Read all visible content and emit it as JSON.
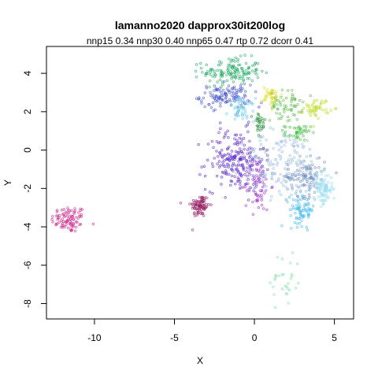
{
  "chart_data": {
    "type": "scatter",
    "title": "lamanno2020 dapprox30it200log",
    "subtitle": "nnp15 0.34 nnp30 0.40 nnp65 0.47 rtp 0.72 dcorr 0.41",
    "xlabel": "X",
    "ylabel": "Y",
    "xlim": [
      -13,
      6.2
    ],
    "ylim": [
      -8.8,
      5.4
    ],
    "x_ticks": [
      -10,
      -5,
      0,
      5
    ],
    "y_ticks": [
      -8,
      -6,
      -4,
      -2,
      0,
      2,
      4
    ],
    "grid": false,
    "clusters": [
      {
        "cx": -11.6,
        "cy": -3.6,
        "sx": 0.55,
        "sy": 0.35,
        "n": 90,
        "color": "#cc2288"
      },
      {
        "cx": -3.4,
        "cy": -2.9,
        "sx": 0.3,
        "sy": 0.3,
        "n": 90,
        "color": "#992266"
      },
      {
        "cx": -1.4,
        "cy": 4.1,
        "sx": 0.9,
        "sy": 0.35,
        "n": 140,
        "color": "#22aa66"
      },
      {
        "cx": -1.8,
        "cy": 2.8,
        "sx": 0.8,
        "sy": 0.3,
        "n": 120,
        "color": "#4455cc"
      },
      {
        "cx": -0.8,
        "cy": 2.1,
        "sx": 0.4,
        "sy": 0.3,
        "n": 50,
        "color": "#66ccee"
      },
      {
        "cx": 1.1,
        "cy": 2.8,
        "sx": 0.3,
        "sy": 0.25,
        "n": 40,
        "color": "#dddd22"
      },
      {
        "cx": 2.0,
        "cy": 2.3,
        "sx": 0.5,
        "sy": 0.4,
        "n": 60,
        "color": "#55bb44"
      },
      {
        "cx": 3.9,
        "cy": 2.2,
        "sx": 0.4,
        "sy": 0.25,
        "n": 50,
        "color": "#bbdd22"
      },
      {
        "cx": 2.7,
        "cy": 0.9,
        "sx": 0.4,
        "sy": 0.2,
        "n": 40,
        "color": "#33bb33"
      },
      {
        "cx": 0.3,
        "cy": 1.3,
        "sx": 0.2,
        "sy": 0.4,
        "n": 30,
        "color": "#228833"
      },
      {
        "cx": -1.2,
        "cy": -0.5,
        "sx": 0.9,
        "sy": 0.8,
        "n": 200,
        "color": "#5522cc"
      },
      {
        "cx": 0.2,
        "cy": -1.8,
        "sx": 0.4,
        "sy": 0.7,
        "n": 80,
        "color": "#9933cc"
      },
      {
        "cx": 1.8,
        "cy": -0.7,
        "sx": 1.3,
        "sy": 0.9,
        "n": 170,
        "color": "#99bbdd"
      },
      {
        "cx": 3.2,
        "cy": -1.4,
        "sx": 0.6,
        "sy": 0.5,
        "n": 90,
        "color": "#6688bb"
      },
      {
        "cx": 3.0,
        "cy": -3.1,
        "sx": 0.4,
        "sy": 0.4,
        "n": 80,
        "color": "#44bbee"
      },
      {
        "cx": 4.3,
        "cy": -2.0,
        "sx": 0.3,
        "sy": 0.4,
        "n": 90,
        "color": "#99ddee"
      },
      {
        "cx": 2.0,
        "cy": -6.8,
        "sx": 0.5,
        "sy": 0.8,
        "n": 30,
        "color": "#88ddaa"
      }
    ]
  }
}
